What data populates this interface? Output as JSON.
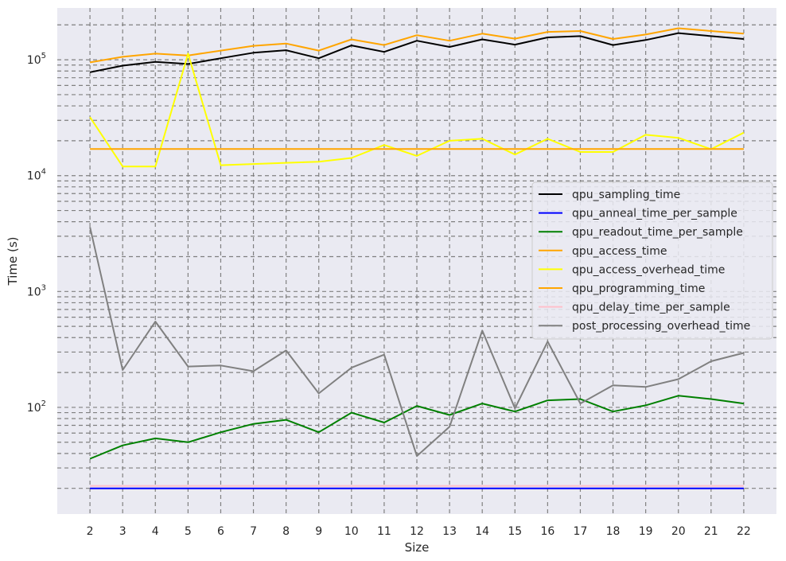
{
  "chart_data": {
    "type": "line",
    "xlabel": "Size",
    "ylabel": "Time (s)",
    "x": [
      2,
      3,
      4,
      5,
      6,
      7,
      8,
      9,
      10,
      11,
      12,
      13,
      14,
      15,
      16,
      17,
      18,
      19,
      20,
      21,
      22
    ],
    "y_scale": "log",
    "ylim": [
      12,
      280000
    ],
    "xlim": [
      1,
      23
    ],
    "y_tick_labels": [
      {
        "value": 100,
        "base": "10",
        "exp": "2"
      },
      {
        "value": 1000,
        "base": "10",
        "exp": "3"
      },
      {
        "value": 10000,
        "base": "10",
        "exp": "4"
      },
      {
        "value": 100000,
        "base": "10",
        "exp": "5"
      }
    ],
    "grid": true,
    "grid_style": "dashed",
    "legend_position": "right",
    "series": [
      {
        "name": "qpu_sampling_time",
        "color": "#000000",
        "values": [
          78000,
          89000,
          96000,
          92000,
          103000,
          115000,
          121000,
          103000,
          133000,
          117000,
          146000,
          129000,
          150000,
          135000,
          156000,
          160000,
          134000,
          148000,
          170000,
          160000,
          151000
        ]
      },
      {
        "name": "qpu_anneal_time_per_sample",
        "color": "#0000ff",
        "values": [
          20,
          20,
          20,
          20,
          20,
          20,
          20,
          20,
          20,
          20,
          20,
          20,
          20,
          20,
          20,
          20,
          20,
          20,
          20,
          20,
          20
        ]
      },
      {
        "name": "qpu_readout_time_per_sample",
        "color": "#008000",
        "values": [
          36,
          47,
          54,
          50,
          61,
          72,
          78,
          61,
          90,
          74,
          103,
          86,
          108,
          92,
          115,
          118,
          92,
          104,
          126,
          118,
          108
        ]
      },
      {
        "name": "qpu_access_time",
        "color": "#ffa500",
        "values": [
          95000,
          106000,
          113000,
          109000,
          120000,
          132000,
          138000,
          120000,
          150000,
          134000,
          163000,
          146000,
          168000,
          152000,
          174000,
          177000,
          151000,
          165000,
          187000,
          177000,
          168000
        ]
      },
      {
        "name": "qpu_access_overhead_time",
        "color": "#ffff00",
        "values": [
          32000,
          12000,
          12000,
          113000,
          12300,
          12600,
          12900,
          13200,
          14200,
          18400,
          14800,
          20000,
          20800,
          15200,
          20800,
          16000,
          16000,
          22500,
          21200,
          16900,
          23500
        ]
      },
      {
        "name": "qpu_programming_time",
        "color": "#ffa500",
        "values": [
          17000,
          17000,
          17000,
          17000,
          17000,
          17000,
          17000,
          17000,
          17000,
          17000,
          17000,
          17000,
          17000,
          17000,
          17000,
          17000,
          17000,
          17000,
          17000,
          17000,
          17000
        ]
      },
      {
        "name": "qpu_delay_time_per_sample",
        "color": "#ffc0cb",
        "values": [
          21,
          21,
          21,
          21,
          21,
          21,
          21,
          21,
          21,
          21,
          21,
          21,
          21,
          21,
          21,
          21,
          21,
          21,
          21,
          21,
          21
        ]
      },
      {
        "name": "post_processing_overhead_time",
        "color": "#808080",
        "values": [
          3600,
          210,
          550,
          225,
          230,
          205,
          310,
          132,
          220,
          285,
          38,
          68,
          460,
          98,
          370,
          108,
          155,
          150,
          175,
          250,
          295
        ]
      }
    ]
  }
}
